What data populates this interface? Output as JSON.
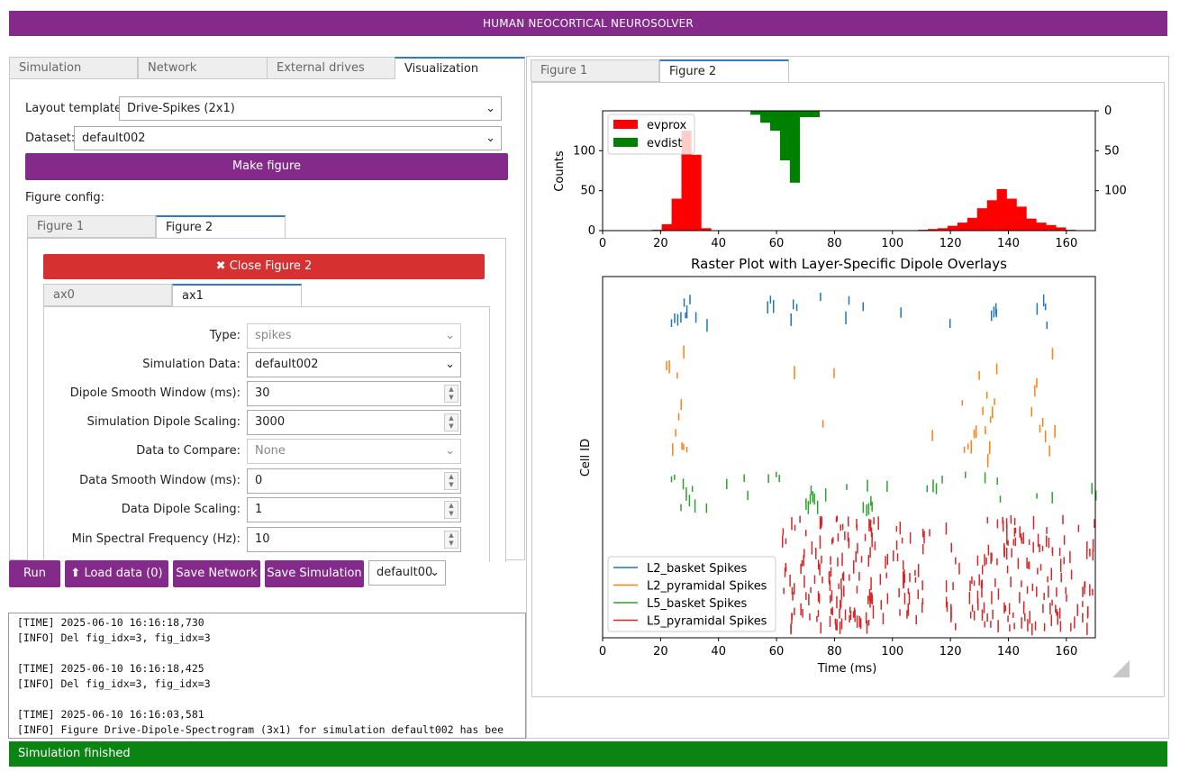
{
  "app": {
    "title": "HUMAN NEOCORTICAL NEUROSOLVER",
    "status": "Simulation finished"
  },
  "left_tabs": [
    "Simulation",
    "Network",
    "External drives",
    "Visualization"
  ],
  "visualization": {
    "layout_label": "Layout template:",
    "layout_value": "Drive-Spikes (2x1)",
    "dataset_label": "Dataset:",
    "dataset_value": "default002",
    "make_figure": "Make figure",
    "figure_config_label": "Figure config:",
    "figure_tabs": [
      "Figure 1",
      "Figure 2"
    ],
    "close_figure": "Close Figure 2",
    "ax_tabs": [
      "ax0",
      "ax1"
    ],
    "fields": [
      {
        "label": "Type:",
        "value": "spikes",
        "kind": "select",
        "disabled": true
      },
      {
        "label": "Simulation Data:",
        "value": "default002",
        "kind": "select",
        "disabled": false
      },
      {
        "label": "Dipole Smooth Window (ms):",
        "value": "30",
        "kind": "number",
        "disabled": false
      },
      {
        "label": "Simulation Dipole Scaling:",
        "value": "3000",
        "kind": "number",
        "disabled": false
      },
      {
        "label": "Data to Compare:",
        "value": "None",
        "kind": "select",
        "disabled": true
      },
      {
        "label": "Data Smooth Window (ms):",
        "value": "0",
        "kind": "number",
        "disabled": false
      },
      {
        "label": "Data Dipole Scaling:",
        "value": "1",
        "kind": "number",
        "disabled": false
      },
      {
        "label": "Min Spectral Frequency (Hz):",
        "value": "10",
        "kind": "number",
        "disabled": false
      }
    ]
  },
  "bottom_bar": {
    "run": "Run",
    "load_data": "Load data (0)",
    "save_network": "Save Network",
    "save_simulation": "Save Simulation",
    "sim_select": "default002"
  },
  "console_lines": [
    "[TIME] 2025-06-10 16:16:18,730",
    "[INFO] Del fig_idx=3, fig_idx=3",
    "",
    "[TIME] 2025-06-10 16:16:18,425",
    "[INFO] Del fig_idx=3, fig_idx=3",
    "",
    "[TIME] 2025-06-10 16:16:03,581",
    "[INFO] Figure Drive-Dipole-Spectrogram (3x1) for simulation default002 has bee"
  ],
  "right_tabs": [
    "Figure 1",
    "Figure 2"
  ],
  "colors": {
    "purple": "#842a8b",
    "red_button": "#d63031",
    "status_green": "#0b8413",
    "evprox": "#ff0000",
    "evdist": "#008000",
    "L2_basket": "#1f77b4",
    "L2_pyramidal": "#ff7f0e",
    "L5_basket": "#2ca02c",
    "L5_pyramidal": "#d62728"
  },
  "chart_data": [
    {
      "type": "bar",
      "title": "",
      "ylabel": "Counts",
      "xlabel": "",
      "xlim": [
        0,
        170
      ],
      "ylim": [
        0,
        150
      ],
      "xticks": [
        0,
        20,
        40,
        60,
        80,
        100,
        120,
        140,
        160
      ],
      "yticks_left": [
        0,
        50,
        100
      ],
      "yticks_right": [
        "0",
        "50",
        "100"
      ],
      "bin_width": 3.4,
      "legend": [
        "evprox",
        "evdist"
      ],
      "series": [
        {
          "name": "evprox",
          "direction": "up",
          "bins": [
            [
              17,
              1
            ],
            [
              20.4,
              8
            ],
            [
              23.8,
              40
            ],
            [
              27.2,
              125
            ],
            [
              30.6,
              95
            ],
            [
              34,
              3
            ],
            [
              108.8,
              1
            ],
            [
              112.2,
              2
            ],
            [
              115.6,
              3
            ],
            [
              119,
              6
            ],
            [
              122.4,
              10
            ],
            [
              125.8,
              16
            ],
            [
              129.2,
              28
            ],
            [
              132.6,
              38
            ],
            [
              136,
              52
            ],
            [
              139.4,
              40
            ],
            [
              142.8,
              30
            ],
            [
              146.2,
              15
            ],
            [
              149.6,
              10
            ],
            [
              153,
              7
            ],
            [
              156.4,
              4
            ],
            [
              159.8,
              1
            ]
          ]
        },
        {
          "name": "evdist",
          "direction": "down",
          "bins": [
            [
              51,
              5
            ],
            [
              54.4,
              15
            ],
            [
              57.8,
              25
            ],
            [
              61.2,
              62
            ],
            [
              64.6,
              90
            ],
            [
              68,
              8
            ],
            [
              71.4,
              8
            ]
          ]
        }
      ]
    },
    {
      "type": "scatter",
      "title": "Raster Plot with Layer-Specific Dipole Overlays",
      "xlabel": "Time (ms)",
      "ylabel": "Cell ID",
      "xlim": [
        0,
        170
      ],
      "xticks": [
        0,
        20,
        40,
        60,
        80,
        100,
        120,
        140,
        160
      ],
      "legend": [
        "L2_basket Spikes",
        "L2_pyramidal Spikes",
        "L5_basket Spikes",
        "L5_pyramidal Spikes"
      ],
      "series": [
        {
          "name": "L2_basket Spikes",
          "row_band": [
            0.04,
            0.15
          ],
          "times": [
            24,
            25,
            26,
            27,
            28,
            28.5,
            29,
            30,
            32,
            36,
            57,
            58,
            59,
            65,
            66,
            67,
            75,
            84,
            85,
            90,
            103,
            120,
            134,
            135,
            135.5,
            136,
            150,
            152,
            153,
            153.5
          ]
        },
        {
          "name": "L2_pyramidal Spikes",
          "row_band": [
            0.19,
            0.52
          ],
          "times": [
            22,
            23,
            24,
            25,
            26,
            26.5,
            27,
            27.5,
            28,
            28,
            29,
            66,
            76,
            80,
            114,
            124,
            125,
            126,
            127,
            128,
            129,
            130,
            131,
            132,
            132.5,
            133,
            133.5,
            134,
            134.5,
            135,
            136,
            148,
            149,
            150,
            151,
            152,
            153,
            154,
            155,
            156
          ]
        },
        {
          "name": "L5_basket Spikes",
          "row_band": [
            0.54,
            0.66
          ],
          "times": [
            24,
            25,
            27,
            28,
            29,
            30,
            31,
            32,
            36,
            43,
            49,
            50,
            57,
            60,
            61,
            70,
            71,
            71.5,
            72,
            72.5,
            73,
            74,
            77,
            84,
            90,
            91,
            91.5,
            92,
            92.5,
            93,
            98,
            112,
            114,
            115,
            117,
            125,
            132,
            136,
            137,
            150,
            155,
            169,
            170
          ]
        },
        {
          "name": "L5_pyramidal Spikes",
          "row_band": [
            0.66,
            0.99
          ],
          "ranges": [
            [
              62,
              67,
              18
            ],
            [
              68,
              76,
              30
            ],
            [
              78,
              85,
              38
            ],
            [
              85,
              94,
              42
            ],
            [
              95,
              99,
              8
            ],
            [
              100,
              107,
              22
            ],
            [
              107,
              113,
              12
            ],
            [
              118,
              124,
              12
            ],
            [
              126,
              134,
              24
            ],
            [
              134,
              142,
              30
            ],
            [
              142,
              150,
              28
            ],
            [
              150,
              158,
              26
            ],
            [
              158,
              170,
              30
            ]
          ]
        }
      ]
    }
  ]
}
